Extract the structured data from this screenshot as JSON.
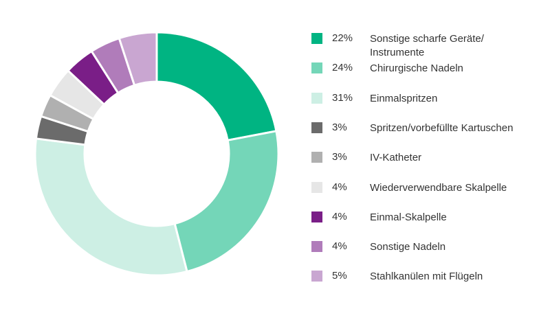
{
  "chart_data": {
    "type": "donut",
    "categories": [
      "Sonstige scharfe Geräte/\nInstrumente",
      "Chirurgische Nadeln",
      "Einmalspritzen",
      "Spritzen/vorbefüllte Kartuschen",
      "IV-Katheter",
      "Wiederverwendbare Skalpelle",
      "Einmal-Skalpelle",
      "Sonstige Nadeln",
      "Stahlkanülen mit Flügeln"
    ],
    "values": [
      22,
      24,
      31,
      3,
      3,
      4,
      4,
      4,
      5
    ],
    "value_labels": [
      "22%",
      "24%",
      "31%",
      "3%",
      "3%",
      "4%",
      "4%",
      "4%",
      "5%"
    ],
    "colors": [
      "#00b482",
      "#74d6b8",
      "#cdefe4",
      "#6b6b6b",
      "#b0b0b0",
      "#e6e6e6",
      "#7a1e87",
      "#b07cba",
      "#c9a6d1"
    ]
  }
}
